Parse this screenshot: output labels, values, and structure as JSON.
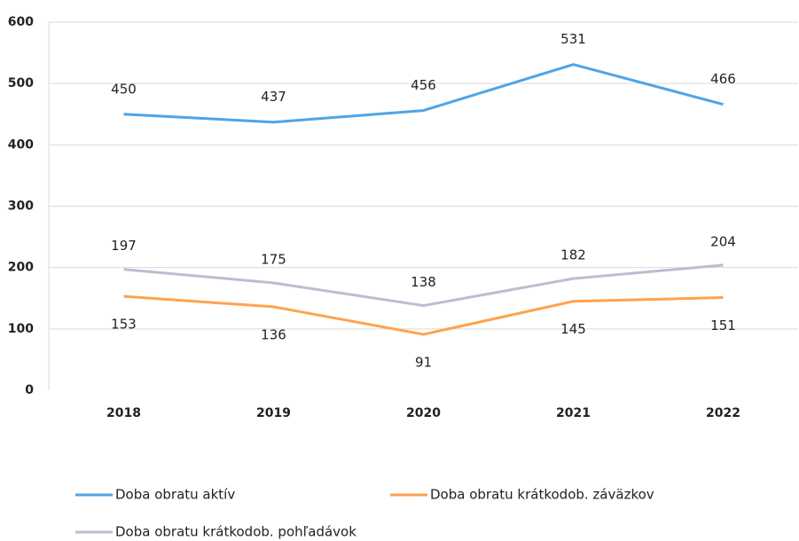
{
  "chart_data": {
    "type": "line",
    "categories": [
      "2018",
      "2019",
      "2020",
      "2021",
      "2022"
    ],
    "series": [
      {
        "name": "Doba obratu aktív",
        "color": "#4ea4e6",
        "values": [
          450,
          437,
          456,
          531,
          466
        ]
      },
      {
        "name": "Doba obratu krátkodob. záväzkov",
        "color": "#ffa24f",
        "values": [
          153,
          136,
          91,
          145,
          151
        ]
      },
      {
        "name": "Doba obratu krátkodob. pohľadávok",
        "color": "#c2bad0",
        "values": [
          197,
          175,
          138,
          182,
          204
        ]
      }
    ],
    "ylim": [
      0,
      600
    ],
    "yticks": [
      0,
      100,
      200,
      300,
      400,
      500,
      600
    ],
    "grid": true,
    "legend": "bottom"
  }
}
